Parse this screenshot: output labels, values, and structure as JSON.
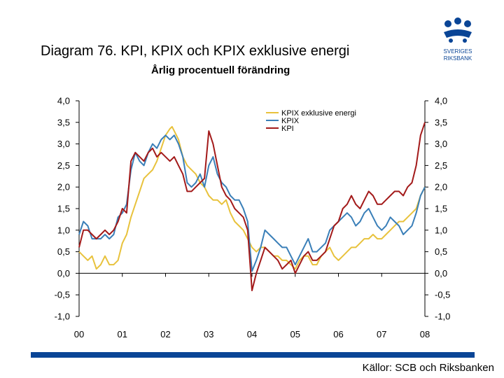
{
  "header": {
    "title": "Diagram 76. KPI, KPIX och KPIX exklusive energi",
    "subtitle": "Årlig procentuell förändring"
  },
  "footer": {
    "source": "Källor: SCB och Riksbanken"
  },
  "logo": {
    "icon": "sveriges-riksbank-logo",
    "line1": "SVERIGES",
    "line2": "RIKSBANK",
    "color": "#0a4596"
  },
  "chart_data": {
    "type": "line",
    "title": "",
    "xlabel": "",
    "ylabel": "",
    "ylim": [
      -1.0,
      4.0
    ],
    "xlim": [
      2000.0,
      2008.0
    ],
    "grid": false,
    "legend_position": "top-right",
    "x_tick_labels": [
      "00",
      "01",
      "02",
      "03",
      "04",
      "05",
      "06",
      "07",
      "08"
    ],
    "y_tick_labels": [
      "4,0",
      "3,5",
      "3,0",
      "2,5",
      "2,0",
      "1,5",
      "1,0",
      "0,5",
      "0,0",
      "-0,5",
      "-1,0"
    ],
    "series": [
      {
        "name": "KPIX exklusive energi",
        "color": "#e8c23c",
        "points": [
          [
            2000.0,
            0.5
          ],
          [
            2000.1,
            0.4
          ],
          [
            2000.2,
            0.3
          ],
          [
            2000.3,
            0.4
          ],
          [
            2000.4,
            0.1
          ],
          [
            2000.5,
            0.2
          ],
          [
            2000.6,
            0.4
          ],
          [
            2000.7,
            0.2
          ],
          [
            2000.8,
            0.2
          ],
          [
            2000.9,
            0.3
          ],
          [
            2001.0,
            0.7
          ],
          [
            2001.1,
            0.9
          ],
          [
            2001.2,
            1.3
          ],
          [
            2001.3,
            1.6
          ],
          [
            2001.4,
            1.9
          ],
          [
            2001.5,
            2.2
          ],
          [
            2001.6,
            2.3
          ],
          [
            2001.7,
            2.4
          ],
          [
            2001.8,
            2.6
          ],
          [
            2001.9,
            2.9
          ],
          [
            2002.0,
            3.2
          ],
          [
            2002.1,
            3.35
          ],
          [
            2002.15,
            3.4
          ],
          [
            2002.2,
            3.3
          ],
          [
            2002.3,
            3.1
          ],
          [
            2002.4,
            2.7
          ],
          [
            2002.5,
            2.5
          ],
          [
            2002.6,
            2.4
          ],
          [
            2002.7,
            2.3
          ],
          [
            2002.8,
            2.1
          ],
          [
            2002.9,
            2.0
          ],
          [
            2003.0,
            1.8
          ],
          [
            2003.1,
            1.7
          ],
          [
            2003.2,
            1.7
          ],
          [
            2003.3,
            1.6
          ],
          [
            2003.4,
            1.7
          ],
          [
            2003.5,
            1.4
          ],
          [
            2003.6,
            1.2
          ],
          [
            2003.7,
            1.1
          ],
          [
            2003.8,
            1.0
          ],
          [
            2003.9,
            0.8
          ],
          [
            2004.0,
            0.6
          ],
          [
            2004.1,
            0.5
          ],
          [
            2004.2,
            0.6
          ],
          [
            2004.3,
            0.6
          ],
          [
            2004.4,
            0.5
          ],
          [
            2004.5,
            0.4
          ],
          [
            2004.6,
            0.4
          ],
          [
            2004.7,
            0.3
          ],
          [
            2004.8,
            0.3
          ],
          [
            2004.9,
            0.2
          ],
          [
            2005.0,
            0.1
          ],
          [
            2005.1,
            0.3
          ],
          [
            2005.2,
            0.4
          ],
          [
            2005.3,
            0.4
          ],
          [
            2005.4,
            0.2
          ],
          [
            2005.5,
            0.2
          ],
          [
            2005.6,
            0.4
          ],
          [
            2005.7,
            0.5
          ],
          [
            2005.8,
            0.6
          ],
          [
            2005.9,
            0.4
          ],
          [
            2006.0,
            0.3
          ],
          [
            2006.1,
            0.4
          ],
          [
            2006.2,
            0.5
          ],
          [
            2006.3,
            0.6
          ],
          [
            2006.4,
            0.6
          ],
          [
            2006.5,
            0.7
          ],
          [
            2006.6,
            0.8
          ],
          [
            2006.7,
            0.8
          ],
          [
            2006.8,
            0.9
          ],
          [
            2006.9,
            0.8
          ],
          [
            2007.0,
            0.8
          ],
          [
            2007.1,
            0.9
          ],
          [
            2007.2,
            1.0
          ],
          [
            2007.3,
            1.1
          ],
          [
            2007.4,
            1.2
          ],
          [
            2007.5,
            1.2
          ],
          [
            2007.6,
            1.3
          ],
          [
            2007.7,
            1.4
          ],
          [
            2007.8,
            1.5
          ],
          [
            2007.9,
            1.8
          ],
          [
            2008.0,
            2.0
          ]
        ]
      },
      {
        "name": "KPIX",
        "color": "#3a7fb8",
        "points": [
          [
            2000.0,
            0.9
          ],
          [
            2000.1,
            1.2
          ],
          [
            2000.2,
            1.1
          ],
          [
            2000.3,
            0.8
          ],
          [
            2000.4,
            0.8
          ],
          [
            2000.5,
            0.8
          ],
          [
            2000.6,
            0.9
          ],
          [
            2000.7,
            0.8
          ],
          [
            2000.8,
            0.9
          ],
          [
            2000.9,
            1.3
          ],
          [
            2001.0,
            1.4
          ],
          [
            2001.1,
            1.6
          ],
          [
            2001.2,
            2.4
          ],
          [
            2001.3,
            2.8
          ],
          [
            2001.4,
            2.6
          ],
          [
            2001.5,
            2.5
          ],
          [
            2001.6,
            2.8
          ],
          [
            2001.7,
            3.0
          ],
          [
            2001.8,
            2.9
          ],
          [
            2001.9,
            3.1
          ],
          [
            2002.0,
            3.2
          ],
          [
            2002.1,
            3.1
          ],
          [
            2002.2,
            3.2
          ],
          [
            2002.3,
            3.0
          ],
          [
            2002.4,
            2.7
          ],
          [
            2002.5,
            2.1
          ],
          [
            2002.6,
            2.0
          ],
          [
            2002.7,
            2.1
          ],
          [
            2002.8,
            2.3
          ],
          [
            2002.9,
            2.0
          ],
          [
            2003.0,
            2.5
          ],
          [
            2003.1,
            2.7
          ],
          [
            2003.2,
            2.3
          ],
          [
            2003.3,
            2.1
          ],
          [
            2003.4,
            2.0
          ],
          [
            2003.5,
            1.8
          ],
          [
            2003.6,
            1.7
          ],
          [
            2003.7,
            1.7
          ],
          [
            2003.8,
            1.5
          ],
          [
            2003.9,
            1.2
          ],
          [
            2004.0,
            0.05
          ],
          [
            2004.1,
            0.3
          ],
          [
            2004.2,
            0.6
          ],
          [
            2004.3,
            1.0
          ],
          [
            2004.4,
            0.9
          ],
          [
            2004.5,
            0.8
          ],
          [
            2004.6,
            0.7
          ],
          [
            2004.7,
            0.6
          ],
          [
            2004.8,
            0.6
          ],
          [
            2004.9,
            0.4
          ],
          [
            2005.0,
            0.2
          ],
          [
            2005.1,
            0.4
          ],
          [
            2005.2,
            0.6
          ],
          [
            2005.3,
            0.8
          ],
          [
            2005.4,
            0.5
          ],
          [
            2005.5,
            0.5
          ],
          [
            2005.6,
            0.6
          ],
          [
            2005.7,
            0.7
          ],
          [
            2005.8,
            1.0
          ],
          [
            2005.9,
            1.1
          ],
          [
            2006.0,
            1.2
          ],
          [
            2006.1,
            1.3
          ],
          [
            2006.2,
            1.4
          ],
          [
            2006.3,
            1.3
          ],
          [
            2006.4,
            1.1
          ],
          [
            2006.5,
            1.2
          ],
          [
            2006.6,
            1.4
          ],
          [
            2006.7,
            1.5
          ],
          [
            2006.8,
            1.3
          ],
          [
            2006.9,
            1.1
          ],
          [
            2007.0,
            1.0
          ],
          [
            2007.1,
            1.1
          ],
          [
            2007.2,
            1.3
          ],
          [
            2007.3,
            1.2
          ],
          [
            2007.4,
            1.1
          ],
          [
            2007.5,
            0.9
          ],
          [
            2007.6,
            1.0
          ],
          [
            2007.7,
            1.1
          ],
          [
            2007.8,
            1.4
          ],
          [
            2007.9,
            1.8
          ],
          [
            2008.0,
            2.0
          ]
        ]
      },
      {
        "name": "KPI",
        "color": "#a31a1a",
        "points": [
          [
            2000.0,
            0.6
          ],
          [
            2000.1,
            1.0
          ],
          [
            2000.2,
            1.0
          ],
          [
            2000.3,
            0.9
          ],
          [
            2000.4,
            0.8
          ],
          [
            2000.5,
            0.9
          ],
          [
            2000.6,
            1.0
          ],
          [
            2000.7,
            0.9
          ],
          [
            2000.8,
            1.0
          ],
          [
            2000.9,
            1.2
          ],
          [
            2001.0,
            1.5
          ],
          [
            2001.1,
            1.4
          ],
          [
            2001.2,
            2.6
          ],
          [
            2001.3,
            2.8
          ],
          [
            2001.4,
            2.7
          ],
          [
            2001.5,
            2.6
          ],
          [
            2001.6,
            2.8
          ],
          [
            2001.7,
            2.9
          ],
          [
            2001.8,
            2.7
          ],
          [
            2001.9,
            2.8
          ],
          [
            2002.0,
            2.7
          ],
          [
            2002.1,
            2.6
          ],
          [
            2002.2,
            2.7
          ],
          [
            2002.3,
            2.5
          ],
          [
            2002.4,
            2.3
          ],
          [
            2002.5,
            1.9
          ],
          [
            2002.6,
            1.9
          ],
          [
            2002.7,
            2.0
          ],
          [
            2002.8,
            2.1
          ],
          [
            2002.9,
            2.2
          ],
          [
            2003.0,
            3.3
          ],
          [
            2003.1,
            3.0
          ],
          [
            2003.2,
            2.5
          ],
          [
            2003.3,
            2.0
          ],
          [
            2003.4,
            1.8
          ],
          [
            2003.5,
            1.7
          ],
          [
            2003.6,
            1.5
          ],
          [
            2003.7,
            1.4
          ],
          [
            2003.8,
            1.3
          ],
          [
            2003.9,
            1.0
          ],
          [
            2004.0,
            -0.4
          ],
          [
            2004.1,
            0.0
          ],
          [
            2004.2,
            0.3
          ],
          [
            2004.3,
            0.6
          ],
          [
            2004.4,
            0.5
          ],
          [
            2004.5,
            0.4
          ],
          [
            2004.6,
            0.3
          ],
          [
            2004.7,
            0.1
          ],
          [
            2004.8,
            0.2
          ],
          [
            2004.9,
            0.3
          ],
          [
            2005.0,
            0.0
          ],
          [
            2005.1,
            0.2
          ],
          [
            2005.2,
            0.4
          ],
          [
            2005.3,
            0.5
          ],
          [
            2005.4,
            0.3
          ],
          [
            2005.5,
            0.3
          ],
          [
            2005.6,
            0.4
          ],
          [
            2005.7,
            0.5
          ],
          [
            2005.8,
            0.8
          ],
          [
            2005.9,
            1.1
          ],
          [
            2006.0,
            1.2
          ],
          [
            2006.1,
            1.5
          ],
          [
            2006.2,
            1.6
          ],
          [
            2006.3,
            1.8
          ],
          [
            2006.4,
            1.6
          ],
          [
            2006.5,
            1.5
          ],
          [
            2006.6,
            1.7
          ],
          [
            2006.7,
            1.9
          ],
          [
            2006.8,
            1.8
          ],
          [
            2006.9,
            1.6
          ],
          [
            2007.0,
            1.6
          ],
          [
            2007.1,
            1.7
          ],
          [
            2007.2,
            1.8
          ],
          [
            2007.3,
            1.9
          ],
          [
            2007.4,
            1.9
          ],
          [
            2007.5,
            1.8
          ],
          [
            2007.6,
            2.0
          ],
          [
            2007.7,
            2.1
          ],
          [
            2007.8,
            2.5
          ],
          [
            2007.9,
            3.2
          ],
          [
            2008.0,
            3.5
          ]
        ]
      }
    ]
  }
}
